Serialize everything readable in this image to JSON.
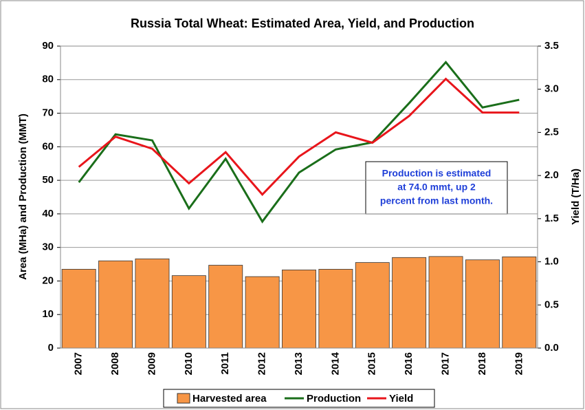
{
  "chart_data": {
    "type": "bar_line",
    "title": "Russia Total Wheat: Estimated Area, Yield, and Production",
    "y_label": "Area (MHa) and Production (MMT)",
    "y2_label": "Yield (T/Ha)",
    "categories": [
      "2007",
      "2008",
      "2009",
      "2010",
      "2011",
      "2012",
      "2013",
      "2014",
      "2015",
      "2016",
      "2017",
      "2018",
      "2019"
    ],
    "series": [
      {
        "name": "Harvested area",
        "type": "bar",
        "color": "#f79646",
        "values": [
          23.5,
          26.0,
          26.6,
          21.6,
          24.7,
          21.3,
          23.3,
          23.5,
          25.5,
          27.0,
          27.3,
          26.3,
          27.2
        ]
      },
      {
        "name": "Production",
        "type": "line",
        "color": "#1a6e1a",
        "values": [
          49.4,
          63.7,
          61.9,
          41.6,
          56.4,
          37.7,
          52.3,
          59.2,
          61.3,
          73.0,
          85.2,
          71.7,
          74.0
        ]
      },
      {
        "name": "Yield",
        "type": "line",
        "axis": "y2",
        "color": "#e8151b",
        "values": [
          2.1,
          2.45,
          2.31,
          1.91,
          2.27,
          1.78,
          2.22,
          2.5,
          2.38,
          2.69,
          3.12,
          2.73,
          2.73
        ]
      }
    ],
    "ylim": [
      0,
      90
    ],
    "yticks": [
      0,
      10,
      20,
      30,
      40,
      50,
      60,
      70,
      80,
      90
    ],
    "y2lim": [
      0,
      3.5
    ],
    "y2ticks": [
      {
        "value": 0,
        "label": "0.0"
      },
      0.5,
      {
        "value": 1,
        "label": "1.0"
      },
      1.5,
      {
        "value": 2,
        "label": "2.0"
      },
      2.5,
      {
        "value": 3,
        "label": "3.0"
      },
      3.5
    ],
    "grid": true,
    "legend": "bottom",
    "annotation": [
      "Production is estimated",
      "at 74.0 mmt, up 2",
      "percent from last month."
    ]
  }
}
